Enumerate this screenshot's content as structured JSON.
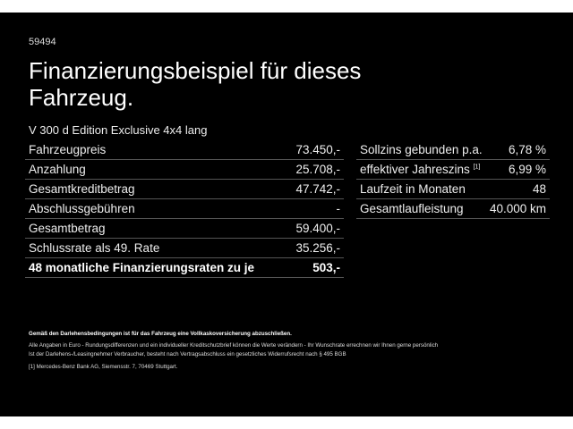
{
  "code": "59494",
  "title": "Finanzierungsbeispiel für dieses Fahrzeug.",
  "model": "V 300 d Edition Exclusive 4x4 lang",
  "left_rows": [
    {
      "label": "Fahrzeugpreis",
      "value": "73.450,-"
    },
    {
      "label": "Anzahlung",
      "value": "25.708,-"
    },
    {
      "label": "Gesamtkreditbetrag",
      "value": "47.742,-"
    },
    {
      "label": "Abschlussgebühren",
      "value": "-"
    },
    {
      "label": "Gesamtbetrag",
      "value": "59.400,-"
    },
    {
      "label": "Schlussrate als 49. Rate",
      "value": "35.256,-"
    },
    {
      "label": "48 monatliche Finanzierungsraten zu je",
      "value": "503,-"
    }
  ],
  "right_rows": [
    {
      "label": "Sollzins gebunden p.a.",
      "value": "6,78 %"
    },
    {
      "label": "effektiver Jahreszins",
      "sup": "[1]",
      "value": "6,99 %"
    },
    {
      "label": "Laufzeit in Monaten",
      "value": "48"
    },
    {
      "label": "Gesamtlaufleistung",
      "value": "40.000 km"
    }
  ],
  "notes": {
    "bold": "Gemäß den Darlehensbedingungen ist für das Fahrzeug eine Vollkaskoversicherung abzuschließen.",
    "line1": "Alle Angaben in Euro - Rundungsdifferenzen und ein individueller Kreditschutzbrief können die Werte verändern - Ihr Wunschrate errechnen wir Ihnen gerne persönlich",
    "line2": "Ist der Darlehens-/Leasingnehmer Verbraucher, besteht nach Vertragsabschluss ein gesetzliches Widerrufsrecht nach § 495 BGB",
    "footnote": "[1] Mercedes-Benz Bank AG, Siemensstr. 7, 70469 Stuttgart."
  }
}
